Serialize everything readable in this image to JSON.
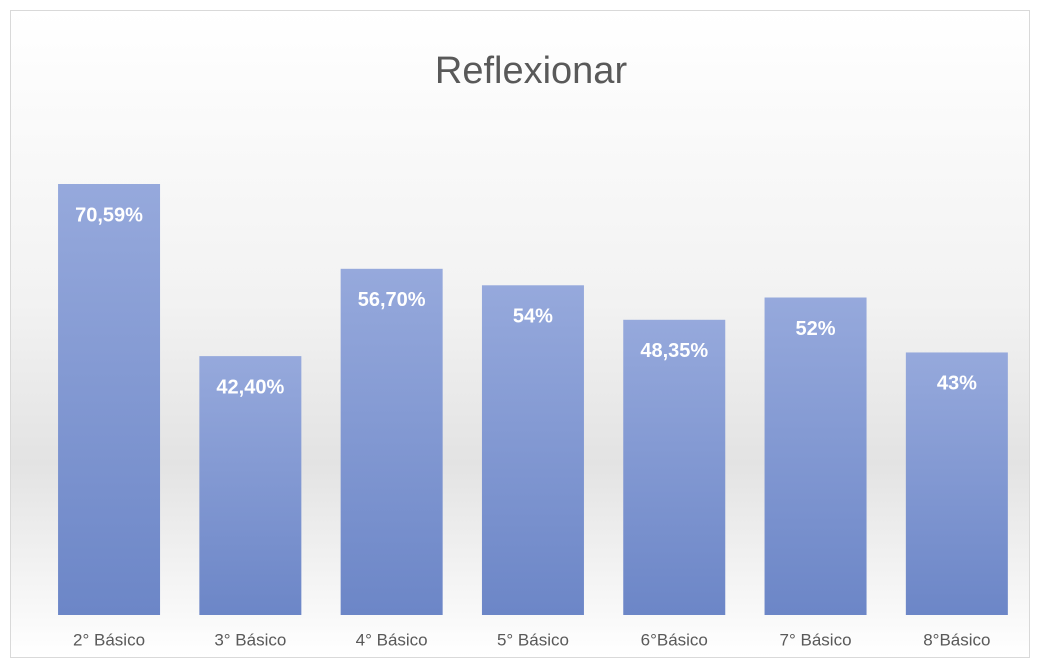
{
  "chart_data": {
    "type": "bar",
    "title": "Reflexionar",
    "categories": [
      "2° Básico",
      "3° Básico",
      "4° Básico",
      "5° Básico",
      "6°Básico",
      "7° Básico",
      "8°Básico"
    ],
    "values": [
      70.59,
      42.4,
      56.7,
      54,
      48.35,
      52,
      43
    ],
    "value_labels": [
      "70,59%",
      "42,40%",
      "56,70%",
      "54%",
      "48,35%",
      "52%",
      "43%"
    ],
    "color": "#8399d2"
  }
}
